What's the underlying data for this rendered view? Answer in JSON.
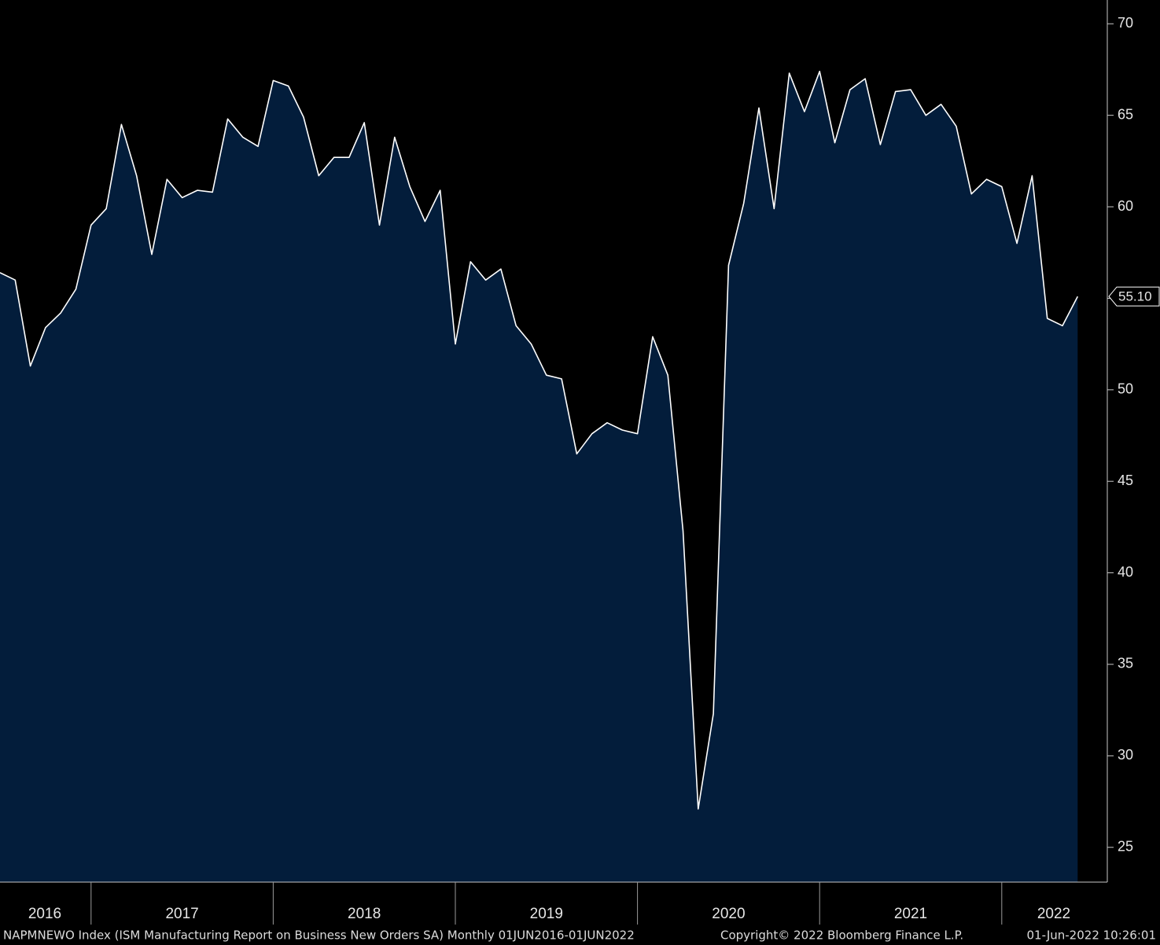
{
  "chart_data": {
    "type": "area",
    "values": [
      56.4,
      56.0,
      51.3,
      53.4,
      54.2,
      55.5,
      59.0,
      59.9,
      64.5,
      61.7,
      57.4,
      61.5,
      60.5,
      60.9,
      60.8,
      64.8,
      63.8,
      63.3,
      66.9,
      66.6,
      64.9,
      61.7,
      62.7,
      62.7,
      64.6,
      59.0,
      63.8,
      61.1,
      59.2,
      60.9,
      52.5,
      57.0,
      56.0,
      56.6,
      53.5,
      52.5,
      50.8,
      50.6,
      46.5,
      47.6,
      48.2,
      47.8,
      47.6,
      52.9,
      50.8,
      42.3,
      27.1,
      32.3,
      56.8,
      60.2,
      65.4,
      59.9,
      67.3,
      65.2,
      67.4,
      63.5,
      66.4,
      67.0,
      63.4,
      66.3,
      66.4,
      65.0,
      65.6,
      64.4,
      60.7,
      61.5,
      61.1,
      58.0,
      61.7,
      53.9,
      53.5,
      55.1
    ],
    "last_value_label": "55.10",
    "line_color": "#ffffff",
    "fill_color": "#031d3b",
    "ylim": [
      23.1,
      71.3
    ],
    "yticks": [
      25,
      30,
      35,
      40,
      45,
      50,
      55,
      60,
      65,
      70
    ],
    "year_labels": [
      "2016",
      "2017",
      "2018",
      "2019",
      "2020",
      "2021",
      "2022"
    ],
    "footer": {
      "description": "NAPMNEWO Index (ISM Manufacturing Report on Business New Orders SA)  Monthly 01JUN2016-01JUN2022",
      "copyright": "Copyright© 2022 Bloomberg Finance L.P.",
      "timestamp": "01-Jun-2022 10:26:01"
    }
  }
}
